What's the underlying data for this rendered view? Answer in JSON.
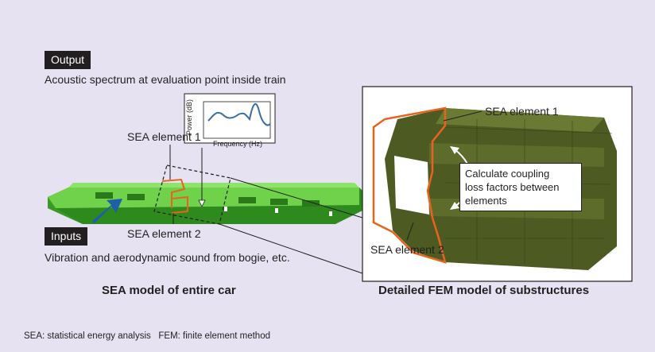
{
  "output": {
    "tag": "Output",
    "description": "Acoustic spectrum at evaluation point inside train"
  },
  "inputs": {
    "tag": "Inputs",
    "description": "Vibration and aerodynamic sound from bogie, etc."
  },
  "spectrum_plot": {
    "ylabel": "Power (dB)",
    "xlabel": "Frequency (Hz)"
  },
  "left_model": {
    "sea_element_1": "SEA element 1",
    "sea_element_2": "SEA element 2",
    "caption": "SEA model of entire car"
  },
  "right_model": {
    "sea_element_1": "SEA element 1",
    "sea_element_2": "SEA element 2",
    "callout_lines": [
      "Calculate coupling",
      "loss factors between",
      "elements"
    ],
    "caption": "Detailed FEM model of substructures"
  },
  "footnote": "SEA: statistical energy analysis   FEM: finite element method",
  "colors": {
    "background": "#e6e2f1",
    "car_green": "#5cc83a",
    "fem_olive": "#4d5a22",
    "sea_edge_orange": "#e8641e",
    "arrow_blue": "#1f5fa8",
    "curve_blue": "#3a6ea5"
  }
}
